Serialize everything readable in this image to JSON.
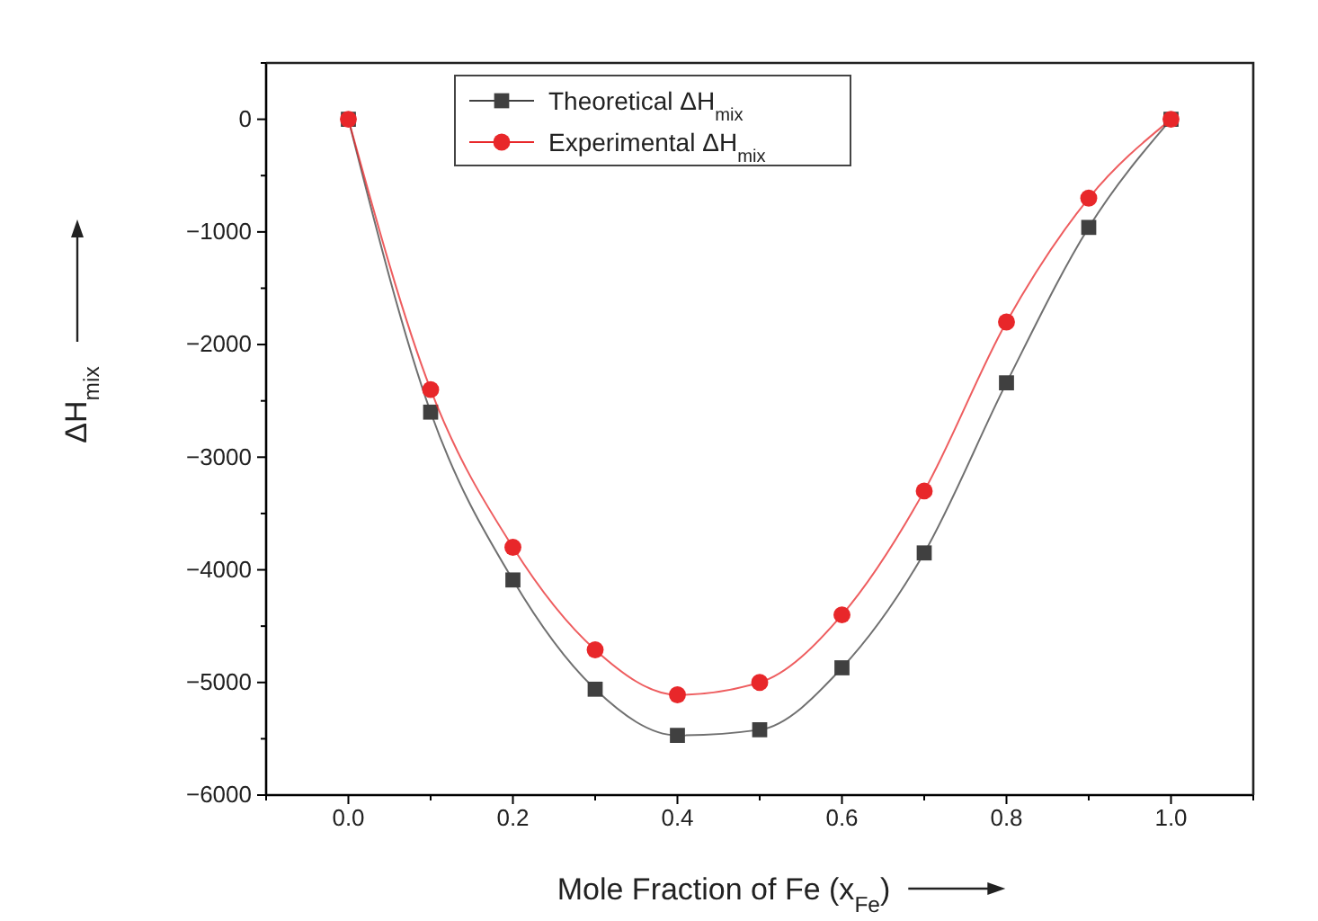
{
  "chart_data": {
    "type": "line",
    "xlabel": "Mole Fraction of Fe (x$_{Fe}$)",
    "ylabel": "ΔH$_{mix}$",
    "x": [
      0,
      0.1,
      0.2,
      0.3,
      0.4,
      0.5,
      0.6,
      0.7,
      0.8,
      0.9,
      1.0
    ],
    "series": [
      {
        "name": "Theoretical ΔH$_{mix}$",
        "color": "#404040",
        "marker": "square",
        "values": [
          0,
          -2600,
          -4090,
          -5060,
          -5470,
          -5420,
          -4870,
          -3850,
          -2340,
          -960,
          0
        ]
      },
      {
        "name": "Experimental ΔH$_{mix}$",
        "color": "#e8272a",
        "marker": "circle",
        "values": [
          0,
          -2400,
          -3800,
          -4710,
          -5110,
          -5000,
          -4400,
          -3300,
          -1800,
          -700,
          0
        ]
      }
    ],
    "xlim": [
      -0.1,
      1.1
    ],
    "ylim": [
      -6000,
      500
    ],
    "xticks": [
      {
        "value": -0.1,
        "label": null
      },
      {
        "value": 0,
        "label": "0.0"
      },
      {
        "value": 0.1,
        "label": null
      },
      {
        "value": 0.2,
        "label": "0.2"
      },
      {
        "value": 0.3,
        "label": null
      },
      {
        "value": 0.4,
        "label": "0.4"
      },
      {
        "value": 0.5,
        "label": null
      },
      {
        "value": 0.6,
        "label": "0.6"
      },
      {
        "value": 0.7,
        "label": null
      },
      {
        "value": 0.8,
        "label": "0.8"
      },
      {
        "value": 0.9,
        "label": null
      },
      {
        "value": 1.0,
        "label": "1.0"
      },
      {
        "value": 1.1,
        "label": null
      }
    ],
    "yticks": [
      -6000,
      {
        "value": -5500,
        "label": null
      },
      -5000,
      {
        "value": -4500,
        "label": null
      },
      -4000,
      {
        "value": -3500,
        "label": null
      },
      -3000,
      {
        "value": -2500,
        "label": null
      },
      -2000,
      {
        "value": -1500,
        "label": null
      },
      -1000,
      {
        "value": -500,
        "label": null
      },
      0,
      {
        "value": 500,
        "label": null
      }
    ],
    "grid": false,
    "legend": "top",
    "line_style": "solid"
  }
}
